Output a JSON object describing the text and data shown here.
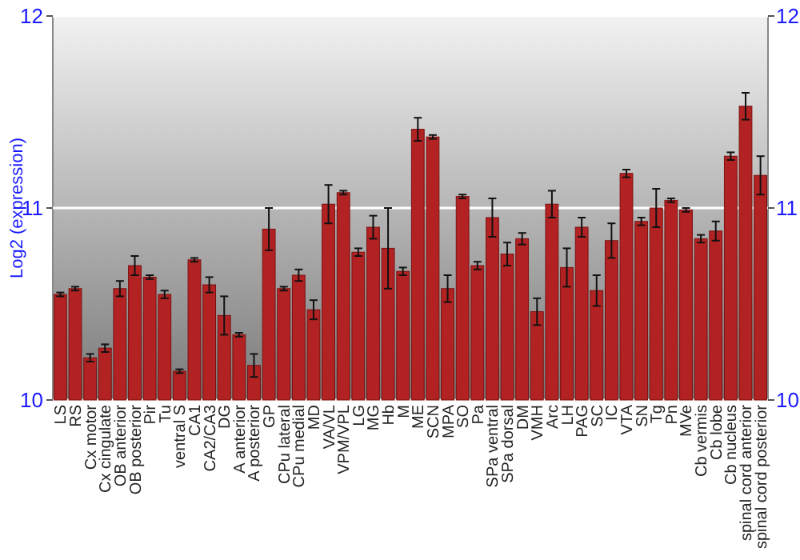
{
  "chart_data": {
    "type": "bar",
    "ylabel": "Log2 (expression)",
    "categories": [
      "LS",
      "RS",
      "Cx motor",
      "Cx cingulate",
      "OB anterior",
      "OB posterior",
      "Pir",
      "Tu",
      "ventral S",
      "CA1",
      "CA2/CA3",
      "DG",
      "A anterior",
      "A posterior",
      "GP",
      "CPu lateral",
      "CPu medial",
      "MD",
      "VA/VL",
      "VPM/VPL",
      "LG",
      "MG",
      "Hb",
      "M",
      "ME",
      "SCN",
      "MPA",
      "SO",
      "Pa",
      "SPa ventral",
      "SPa dorsal",
      "DM",
      "VMH",
      "Arc",
      "LH",
      "PAG",
      "SC",
      "IC",
      "VTA",
      "SN",
      "Tg",
      "Pn",
      "MVe",
      "Cb vermis",
      "Cb lobe",
      "Cb nucleus",
      "spinal cord anterior",
      "spinal cord posterior"
    ],
    "values": [
      10.55,
      10.58,
      10.22,
      10.27,
      10.58,
      10.7,
      10.64,
      10.55,
      10.15,
      10.73,
      10.6,
      10.44,
      10.34,
      10.18,
      10.89,
      10.58,
      10.65,
      10.47,
      11.02,
      11.08,
      10.77,
      10.9,
      10.79,
      10.67,
      11.41,
      11.37,
      10.58,
      11.06,
      10.7,
      10.95,
      10.76,
      10.84,
      10.46,
      11.02,
      10.69,
      10.9,
      10.57,
      10.83,
      11.18,
      10.93,
      11.0,
      11.04,
      10.99,
      10.84,
      10.88,
      11.27,
      11.53,
      11.17
    ],
    "errors": [
      0.01,
      0.01,
      0.02,
      0.02,
      0.04,
      0.05,
      0.01,
      0.02,
      0.01,
      0.01,
      0.04,
      0.1,
      0.01,
      0.06,
      0.11,
      0.01,
      0.03,
      0.05,
      0.1,
      0.01,
      0.02,
      0.06,
      0.21,
      0.02,
      0.06,
      0.01,
      0.07,
      0.01,
      0.02,
      0.1,
      0.06,
      0.03,
      0.07,
      0.07,
      0.1,
      0.05,
      0.08,
      0.09,
      0.02,
      0.02,
      0.1,
      0.01,
      0.01,
      0.02,
      0.05,
      0.02,
      0.07,
      0.1
    ],
    "color": "#b22222",
    "ylim": [
      10,
      12
    ],
    "yticks": [
      10,
      11,
      12
    ],
    "y2lim": [
      10,
      12
    ],
    "y2ticks": [
      10,
      11,
      12
    ],
    "grid": "y"
  }
}
